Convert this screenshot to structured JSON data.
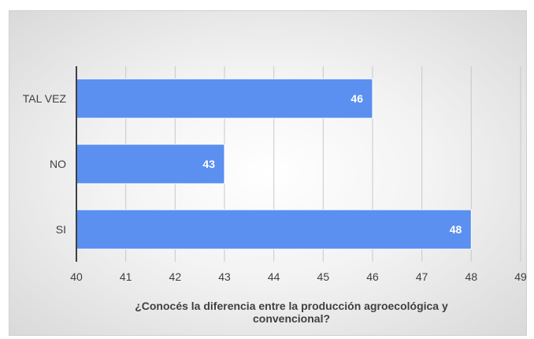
{
  "chart_data": {
    "type": "bar",
    "orientation": "horizontal",
    "categories": [
      "TAL VEZ",
      "NO",
      "SI"
    ],
    "values": [
      46,
      43,
      48
    ],
    "xlabel": "¿Conocés la diferencia entre la producción agroecológica y convencional?",
    "ylabel": "",
    "xlim": [
      40,
      49
    ],
    "xticks": [
      "40",
      "41",
      "42",
      "43",
      "44",
      "45",
      "46",
      "47",
      "48",
      "49"
    ],
    "data_labels": [
      "46",
      "43",
      "48"
    ],
    "bar_color": "#5B8FF0",
    "grid": "vertical",
    "legend": "none"
  }
}
